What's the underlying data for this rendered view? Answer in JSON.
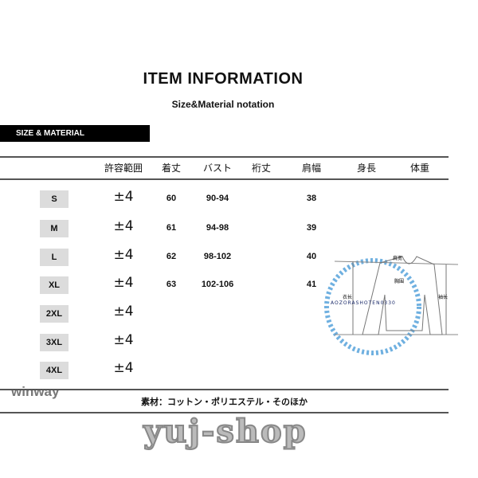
{
  "title": "ITEM  INFORMATION",
  "subtitle": "Size&Material notation",
  "section_label": "SIZE & MATERIAL",
  "headers": [
    "許容範囲",
    "着丈",
    "バスト",
    "裄丈",
    "肩幅",
    "身長",
    "体重"
  ],
  "rows": [
    {
      "size": "S",
      "tolerance": "±4",
      "length": "60",
      "bust": "90-94",
      "sleeve": "",
      "shoulder": "38"
    },
    {
      "size": "M",
      "tolerance": "±4",
      "length": "61",
      "bust": "94-98",
      "sleeve": "",
      "shoulder": "39"
    },
    {
      "size": "L",
      "tolerance": "±4",
      "length": "62",
      "bust": "98-102",
      "sleeve": "",
      "shoulder": "40"
    },
    {
      "size": "XL",
      "tolerance": "±4",
      "length": "63",
      "bust": "102-106",
      "sleeve": "",
      "shoulder": "41"
    },
    {
      "size": "2XL",
      "tolerance": "±4"
    },
    {
      "size": "3XL",
      "tolerance": "±4"
    },
    {
      "size": "4XL",
      "tolerance": "±4"
    }
  ],
  "diagram": {
    "watermark": "AOZORASHOTEN0330",
    "labels": [
      "肩宽",
      "胸围",
      "衣长",
      "袖长"
    ]
  },
  "material": "素材：コットン・ポリエステル・そのほか",
  "watermark_left": "winway",
  "logo": "yuj-shop"
}
